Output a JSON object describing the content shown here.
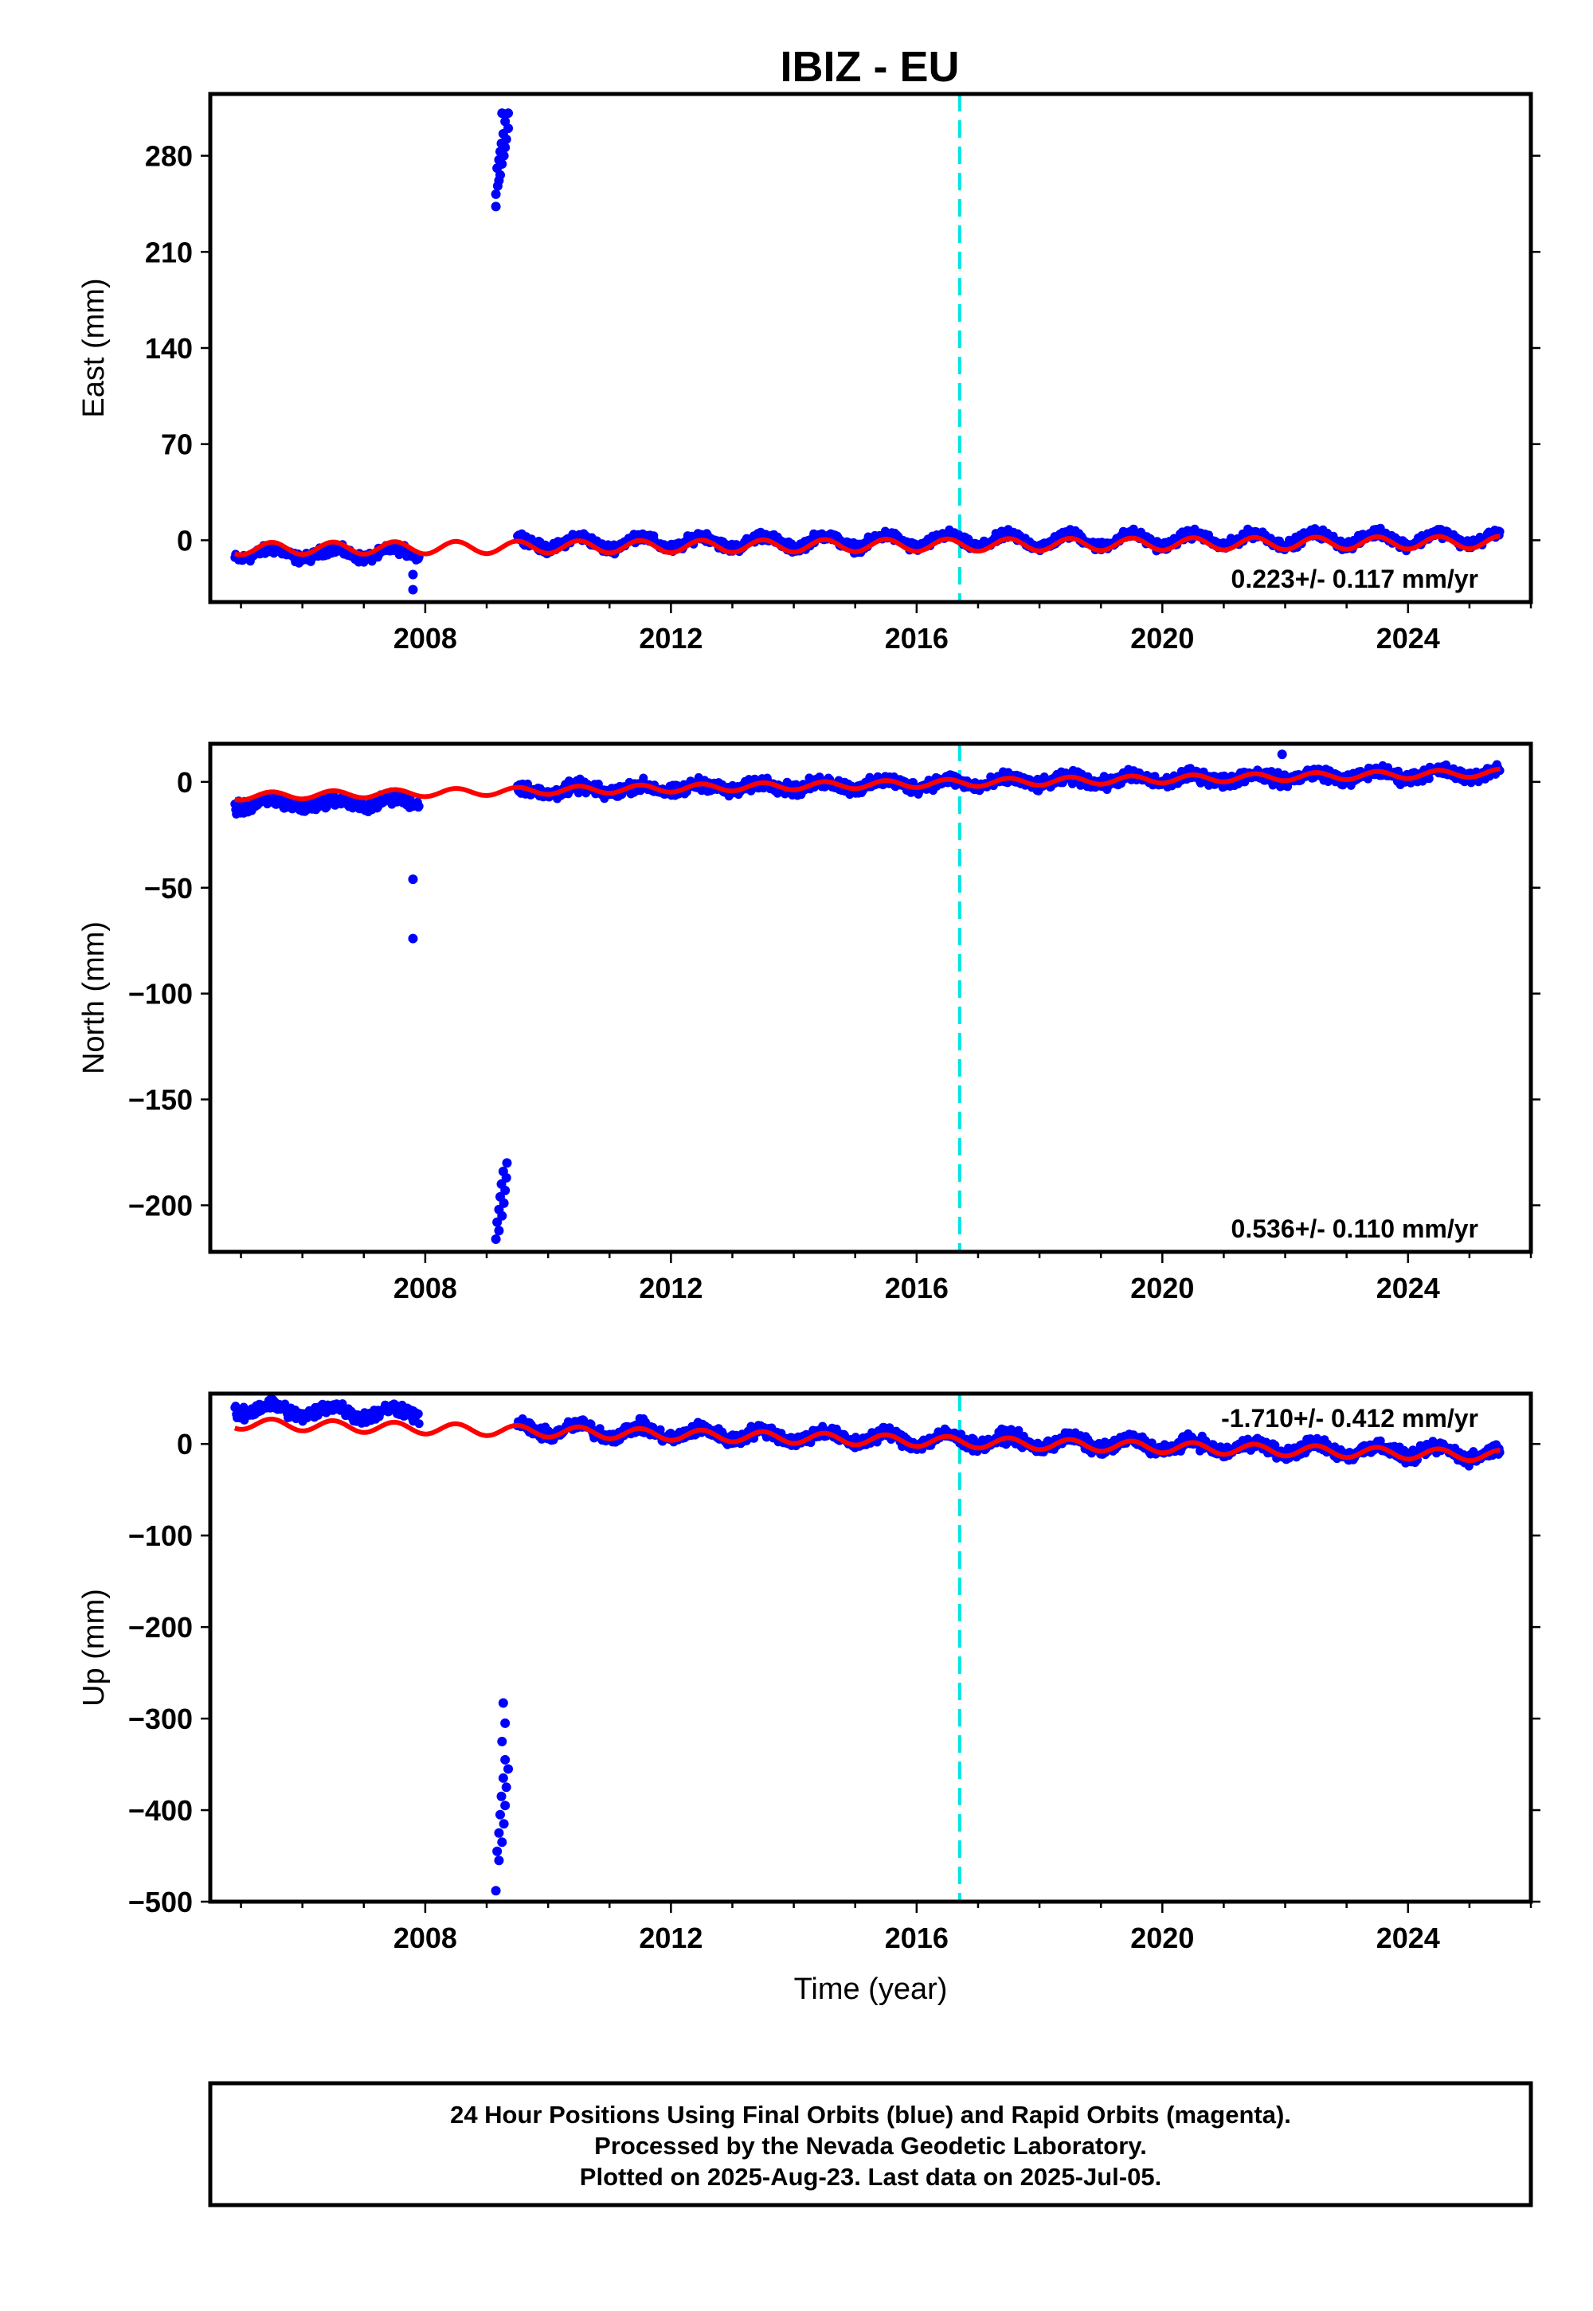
{
  "title": "IBIZ - EU",
  "colors": {
    "observations": "#0000ff",
    "model": "#ff0000",
    "event_line": "#00e5e5",
    "frame": "#000000"
  },
  "chart_data": [
    {
      "type": "scatter",
      "ylabel": "East (mm)",
      "xlabel": "",
      "xlim": [
        2004.5,
        2026.0
      ],
      "ylim": [
        -45,
        325
      ],
      "yticks": [
        0,
        70,
        140,
        210,
        280
      ],
      "xticks": [
        2008,
        2012,
        2016,
        2020,
        2024
      ],
      "rate_label": "0.223+/- 0.117 mm/yr",
      "rate_position": "bottom-right",
      "event_line_x": 2016.7,
      "series": [
        {
          "kind": "points",
          "segments": [
            {
              "x_start": 2004.9,
              "x_end": 2007.9,
              "offset": -7.5,
              "rate": 0.22,
              "amp": 3.5,
              "noise": 3
            },
            {
              "x_start": 2009.5,
              "x_end": 2025.5,
              "offset": -0.5,
              "rate": 0.22,
              "amp": 4.5,
              "noise": 3
            }
          ],
          "outliers": [
            {
              "x": 2007.8,
              "y": -25
            },
            {
              "x": 2007.8,
              "y": -36
            },
            {
              "x": 2009.15,
              "y": 243
            },
            {
              "x": 2009.15,
              "y": 252
            },
            {
              "x": 2009.18,
              "y": 258
            },
            {
              "x": 2009.2,
              "y": 262
            },
            {
              "x": 2009.22,
              "y": 266
            },
            {
              "x": 2009.17,
              "y": 271
            },
            {
              "x": 2009.25,
              "y": 274
            },
            {
              "x": 2009.2,
              "y": 277
            },
            {
              "x": 2009.28,
              "y": 280
            },
            {
              "x": 2009.22,
              "y": 283
            },
            {
              "x": 2009.3,
              "y": 286
            },
            {
              "x": 2009.24,
              "y": 289
            },
            {
              "x": 2009.32,
              "y": 292
            },
            {
              "x": 2009.27,
              "y": 296
            },
            {
              "x": 2009.35,
              "y": 300
            },
            {
              "x": 2009.3,
              "y": 305
            },
            {
              "x": 2009.25,
              "y": 311
            },
            {
              "x": 2009.35,
              "y": 311
            }
          ]
        },
        {
          "kind": "model",
          "x_start": 2004.9,
          "x_end": 2025.5,
          "offset": -3.5,
          "rate": 0.223,
          "ref_year": 2016.7,
          "amp": 4.5
        }
      ]
    },
    {
      "type": "scatter",
      "ylabel": "North (mm)",
      "xlabel": "",
      "xlim": [
        2004.5,
        2026.0
      ],
      "ylim": [
        -222,
        18
      ],
      "yticks": [
        -200,
        -150,
        -100,
        -50,
        0
      ],
      "xticks": [
        2008,
        2012,
        2016,
        2020,
        2024
      ],
      "rate_label": "0.536+/- 0.110 mm/yr",
      "rate_position": "bottom-right",
      "event_line_x": 2016.7,
      "series": [
        {
          "kind": "points",
          "segments": [
            {
              "x_start": 2004.9,
              "x_end": 2007.9,
              "offset": -4.5,
              "rate": 0.54,
              "amp": 1.8,
              "noise": 2.5
            },
            {
              "x_start": 2009.5,
              "x_end": 2025.5,
              "offset": -0.5,
              "rate": 0.54,
              "amp": 1.8,
              "noise": 2.5
            }
          ],
          "outliers": [
            {
              "x": 2007.8,
              "y": -46
            },
            {
              "x": 2007.8,
              "y": -74
            },
            {
              "x": 2021.95,
              "y": 13
            },
            {
              "x": 2009.15,
              "y": -216
            },
            {
              "x": 2009.2,
              "y": -212
            },
            {
              "x": 2009.17,
              "y": -208
            },
            {
              "x": 2009.25,
              "y": -205
            },
            {
              "x": 2009.2,
              "y": -202
            },
            {
              "x": 2009.28,
              "y": -199
            },
            {
              "x": 2009.22,
              "y": -196
            },
            {
              "x": 2009.3,
              "y": -193
            },
            {
              "x": 2009.24,
              "y": -190
            },
            {
              "x": 2009.32,
              "y": -187
            },
            {
              "x": 2009.27,
              "y": -184
            },
            {
              "x": 2009.33,
              "y": -180
            }
          ]
        },
        {
          "kind": "model",
          "x_start": 2004.9,
          "x_end": 2025.5,
          "offset": -0.5,
          "rate": 0.536,
          "ref_year": 2016.7,
          "amp": 1.8
        }
      ]
    },
    {
      "type": "scatter",
      "ylabel": "Up (mm)",
      "xlabel": "Time (year)",
      "xlim": [
        2004.5,
        2026.0
      ],
      "ylim": [
        -500,
        55
      ],
      "yticks": [
        -500,
        -400,
        -300,
        -200,
        -100,
        0
      ],
      "xticks": [
        2008,
        2012,
        2016,
        2020,
        2024
      ],
      "rate_label": "-1.710+/- 0.412 mm/yr",
      "rate_position": "top-right",
      "event_line_x": 2016.7,
      "series": [
        {
          "kind": "points",
          "segments": [
            {
              "x_start": 2004.9,
              "x_end": 2007.9,
              "offset": 18,
              "rate": -1.71,
              "amp": 6,
              "noise": 6
            },
            {
              "x_start": 2009.5,
              "x_end": 2025.5,
              "offset": 4,
              "rate": -1.71,
              "amp": 6,
              "noise": 6
            }
          ],
          "outliers": [
            {
              "x": 2005.3,
              "y": 43
            },
            {
              "x": 2007.8,
              "y": 36
            },
            {
              "x": 2009.15,
              "y": -488
            },
            {
              "x": 2009.2,
              "y": -455
            },
            {
              "x": 2009.17,
              "y": -445
            },
            {
              "x": 2009.25,
              "y": -435
            },
            {
              "x": 2009.2,
              "y": -425
            },
            {
              "x": 2009.28,
              "y": -415
            },
            {
              "x": 2009.22,
              "y": -405
            },
            {
              "x": 2009.3,
              "y": -395
            },
            {
              "x": 2009.24,
              "y": -385
            },
            {
              "x": 2009.32,
              "y": -375
            },
            {
              "x": 2009.27,
              "y": -365
            },
            {
              "x": 2009.35,
              "y": -355
            },
            {
              "x": 2009.3,
              "y": -345
            },
            {
              "x": 2009.25,
              "y": -325
            },
            {
              "x": 2009.3,
              "y": -305
            },
            {
              "x": 2009.27,
              "y": -283
            }
          ]
        },
        {
          "kind": "model",
          "x_start": 2004.9,
          "x_end": 2025.5,
          "offset": 2,
          "rate": -1.71,
          "ref_year": 2016.7,
          "amp": 6
        }
      ]
    }
  ],
  "footer": {
    "line1": "24 Hour Positions Using Final Orbits (blue) and Rapid Orbits (magenta).",
    "line2": "Processed by the Nevada Geodetic Laboratory.",
    "line3": "Plotted on 2025-Aug-23. Last data on 2025-Jul-05."
  }
}
